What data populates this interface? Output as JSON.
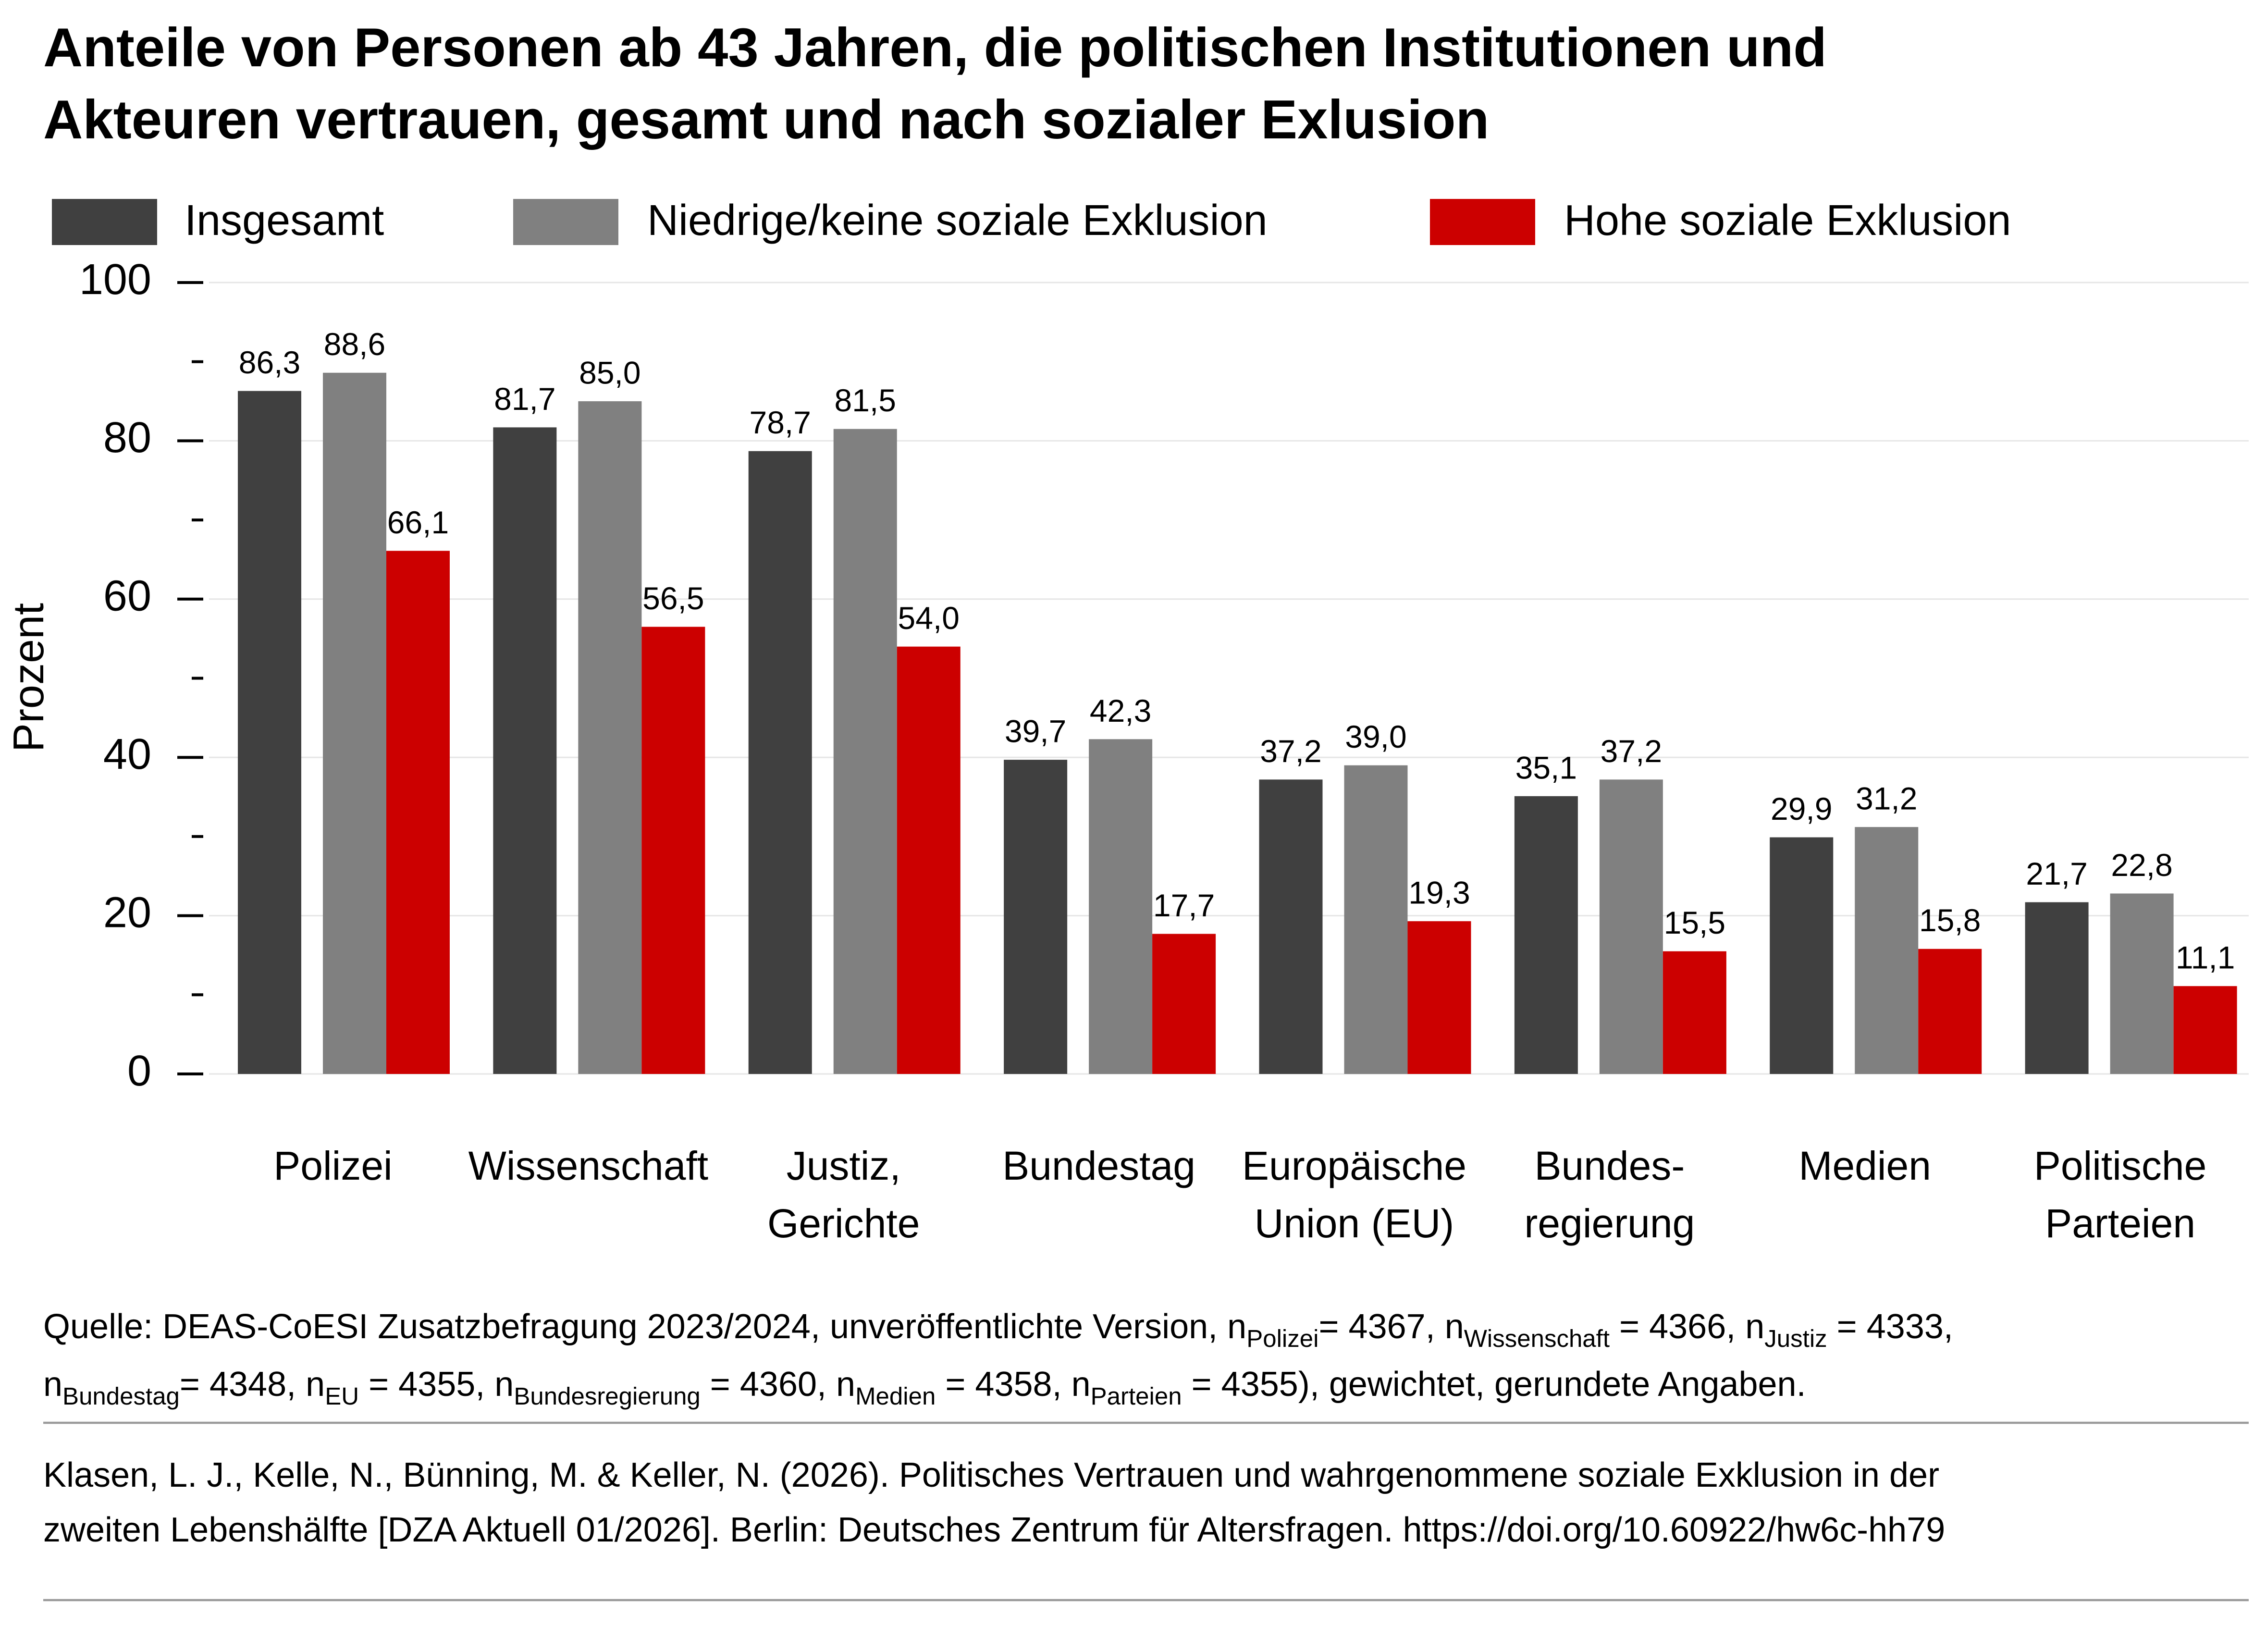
{
  "chart_data": {
    "type": "bar",
    "title": [
      "Anteile von Personen ab 43 Jahren, die politischen Institutionen und",
      "Akteuren vertrauen, gesamt und nach sozialer Exlusion"
    ],
    "y_label": "Prozent",
    "categories": [
      [
        "Polizei"
      ],
      [
        "Wissenschaft"
      ],
      [
        "Justiz,",
        "Gerichte"
      ],
      [
        "Bundestag"
      ],
      [
        "Europäische",
        "Union (EU)"
      ],
      [
        "Bundes-",
        "regierung"
      ],
      [
        "Medien"
      ],
      [
        "Politische",
        "Parteien"
      ]
    ],
    "series": [
      {
        "name": "Insgesamt",
        "color": "#404040",
        "values": [
          86.3,
          81.7,
          78.7,
          39.7,
          37.2,
          35.1,
          29.9,
          21.7
        ],
        "value_labels": [
          "86,3",
          "81,7",
          "78,7",
          "39,7",
          "37,2",
          "35,1",
          "29,9",
          "21,7"
        ]
      },
      {
        "name": "Niedrige/keine soziale Exklusion",
        "color": "#808080",
        "values": [
          88.6,
          85.0,
          81.5,
          42.3,
          39.0,
          37.2,
          31.2,
          22.8
        ],
        "value_labels": [
          "88,6",
          "85,0",
          "81,5",
          "42,3",
          "39,0",
          "37,2",
          "31,2",
          "22,8"
        ]
      },
      {
        "name": "Hohe soziale Exklusion",
        "color": "#cc0000",
        "values": [
          66.1,
          56.5,
          54.0,
          17.7,
          19.3,
          15.5,
          15.8,
          11.1
        ],
        "value_labels": [
          "66,1",
          "56,5",
          "54,0",
          "17,7",
          "19,3",
          "15,5",
          "15,8",
          "11,1"
        ]
      }
    ],
    "ylim": [
      0,
      100
    ],
    "yticks": [
      0,
      20,
      40,
      60,
      80,
      100
    ],
    "yminorticks": [
      10,
      30,
      50,
      70,
      90
    ],
    "grid": true,
    "legend": "top",
    "source": [
      [
        {
          "text": "Quelle: DEAS-CoESI Zusatzbefragung 2023/2024, unveröffentlichte Version,  n"
        },
        {
          "sub": "Polizei"
        },
        {
          "text": "= 4367, n"
        },
        {
          "sub": "Wissenschaft"
        },
        {
          "text": " = 4366, n"
        },
        {
          "sub": "Justiz"
        },
        {
          "text": " = 4333,"
        }
      ],
      [
        {
          "text": "n"
        },
        {
          "sub": "Bundestag"
        },
        {
          "text": "= 4348, n"
        },
        {
          "sub": "EU"
        },
        {
          "text": " = 4355, n"
        },
        {
          "sub": "Bundesregierung"
        },
        {
          "text": " = 4360, n"
        },
        {
          "sub": "Medien"
        },
        {
          "text": " = 4358, n"
        },
        {
          "sub": "Parteien"
        },
        {
          "text": " = 4355), gewichtet, gerundete Angaben."
        }
      ]
    ],
    "citation": [
      "Klasen, L. J., Kelle, N., Bünning, M. & Keller, N. (2026). Politisches Vertrauen und wahrgenommene soziale Exklusion in der",
      "zweiten Lebenshälfte [DZA Aktuell 01/2026]. Berlin: Deutsches Zentrum für Altersfragen. https://doi.org/10.60922/hw6c-hh79"
    ]
  }
}
